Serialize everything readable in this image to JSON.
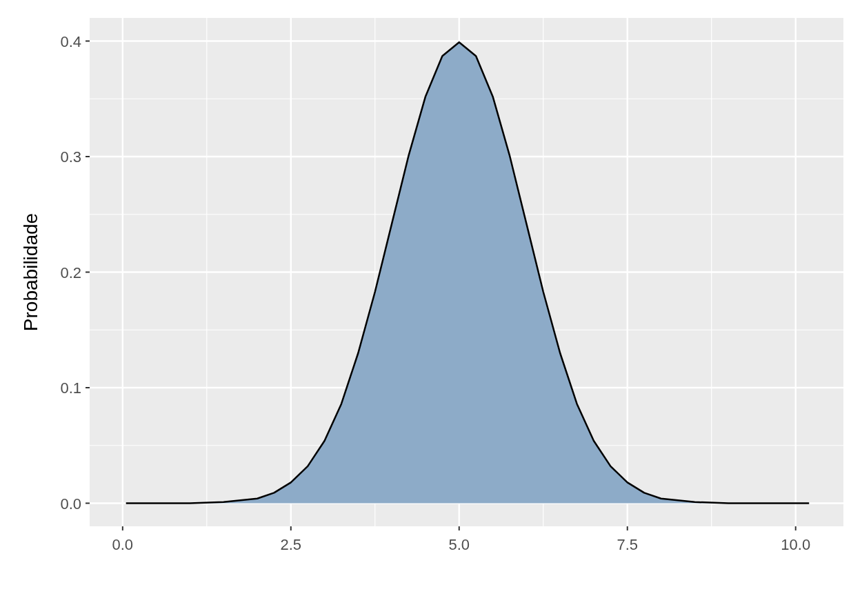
{
  "chart_data": {
    "type": "area",
    "ylabel": "Probabilidade",
    "x": [
      0.05,
      0.5,
      1,
      1.5,
      2,
      2.25,
      2.5,
      2.75,
      3,
      3.25,
      3.5,
      3.75,
      4,
      4.25,
      4.5,
      4.75,
      5,
      5.25,
      5.5,
      5.75,
      6,
      6.25,
      6.5,
      6.75,
      7,
      7.25,
      7.5,
      7.75,
      8,
      8.5,
      9,
      9.5,
      10,
      10.2
    ],
    "series": [
      {
        "color": "#8dabc8",
        "values": [
          0,
          0,
          0,
          0.001,
          0.004,
          0.009,
          0.018,
          0.032,
          0.054,
          0.086,
          0.13,
          0.183,
          0.242,
          0.301,
          0.352,
          0.387,
          0.399,
          0.387,
          0.352,
          0.301,
          0.242,
          0.183,
          0.13,
          0.086,
          0.054,
          0.032,
          0.018,
          0.009,
          0.004,
          0.001,
          0,
          0,
          0,
          0
        ]
      }
    ],
    "xlim": [
      -0.49,
      10.71
    ],
    "ylim": [
      -0.02,
      0.42
    ],
    "xticks": [
      {
        "value": 0,
        "label": "0.0"
      },
      {
        "value": 2.5,
        "label": "2.5"
      },
      {
        "value": 5,
        "label": "5.0"
      },
      {
        "value": 7.5,
        "label": "7.5"
      },
      {
        "value": 10,
        "label": "10.0"
      }
    ],
    "yticks": [
      {
        "value": 0,
        "label": "0.0"
      },
      {
        "value": 0.1,
        "label": "0.1"
      },
      {
        "value": 0.2,
        "label": "0.2"
      },
      {
        "value": 0.3,
        "label": "0.3"
      },
      {
        "value": 0.4,
        "label": "0.4"
      }
    ],
    "grid": true
  }
}
